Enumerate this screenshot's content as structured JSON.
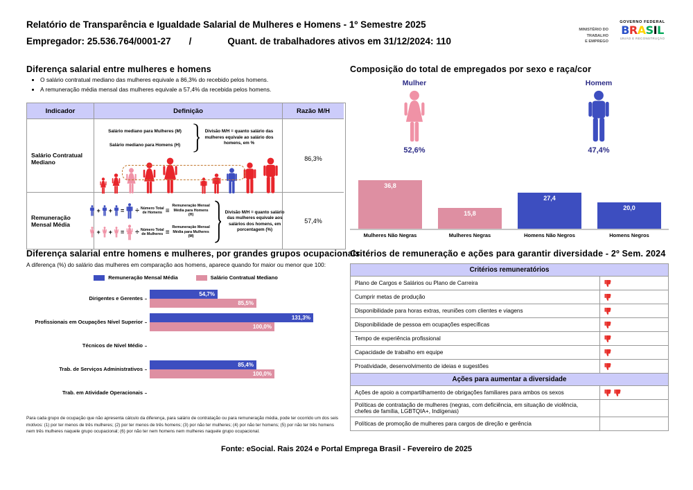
{
  "header": {
    "title": "Relatório de Transparência e Igualdade Salarial de Mulheres e Homens - 1º Semestre 2025",
    "employer": "Empregador: 25.536.764/0001-27",
    "separator": "/",
    "workers": "Quant. de trabalhadores ativos em 31/12/2024: 110",
    "ministry_lines": [
      "MINISTÉRIO DO",
      "TRABALHO",
      "E EMPREGO"
    ],
    "gov": {
      "top": "GOVERNO FEDERAL",
      "name": "BRASIL",
      "bottom": "UNIÃO E RECONSTRUÇÃO"
    }
  },
  "gap_section": {
    "title": "Diferença salarial entre mulheres e homens",
    "bullets": [
      "O salário contratual mediano das mulheres equivale a 86,3% do recebido pelos homens.",
      "A remuneração média mensal das mulheres equivale a 57,4% da recebida pelos homens."
    ],
    "table_headers": [
      "Indicador",
      "Definição",
      "Razão M/H"
    ],
    "row_median": {
      "indicator": "Salário Contratual Mediano",
      "line_women": "Salário mediano para Mulheres (M)",
      "line_men": "Salário mediano para Homens (H)",
      "note": "Divisão M/H = quanto salário das mulheres equivale ao salário dos homens, em %",
      "ratio": "86,3%"
    },
    "row_mean": {
      "indicator": "Remuneração Mensal Média",
      "men_total": "Número Total de Homens",
      "men_result": "Remuneração Mensal Média para Homens (H)",
      "women_total": "Número Total de Mulheres",
      "women_result": "Remuneração Mensal Média para Mulheres (M)",
      "note": "Divisão M/H = quanto salário das mulheres equivale aos salários dos homens, em porcentagem (%)",
      "ratio": "57,4%"
    },
    "symbols": {
      "plus": "+",
      "equals": "=",
      "divide": "÷",
      "equiv": "≡"
    }
  },
  "composition": {
    "title": "Composição do total de empregados por sexo e raça/cor",
    "female_label": "Mulher",
    "female_pct": "52,6%",
    "male_label": "Homem",
    "male_pct": "47,4%"
  },
  "occupations": {
    "title": "Diferença salarial entre homens e mulheres, por grandes grupos ocupacionais",
    "subtitle": "A diferença (%) do salário das mulheres em comparação aos homens, aparece quando for maior ou menor que 100:",
    "footnote": "Para cada grupo de ocupação que não apresenta cálculo da diferença, para salário de contratação ou para remuneração média, pode ter ocorrido um dos seis motivos: (1) por ter menos de três mulheres; (2) por ter menos de três homens; (3) por não ter mulheres; (4) por não ter homens; (5) por não ter três homens nem três mulheres naquele grupo ocupacional; (6) por não ter nem homens nem mulheres naquele grupo ocupacional."
  },
  "criteria": {
    "title": "Critérios de remuneração e ações para garantir diversidade - 2º Sem. 2024",
    "band_criteria": "Critérios remuneratórios",
    "band_actions": "Ações para aumentar a diversidade",
    "criteria_rows": [
      {
        "label": "Plano de Cargos e Salários ou Plano de Carreira",
        "icons": 1
      },
      {
        "label": "Cumprir metas de produção",
        "icons": 1
      },
      {
        "label": "Disponibilidade para horas extras, reuniões com clientes e viagens",
        "icons": 1
      },
      {
        "label": "Disponibilidade de pessoa em ocupações específicas",
        "icons": 1
      },
      {
        "label": "Tempo de experiência profissional",
        "icons": 1
      },
      {
        "label": "Capacidade de trabalho em equipe",
        "icons": 1
      },
      {
        "label": "Proatividade, desenvolvimento de ideias e sugestões",
        "icons": 1
      }
    ],
    "actions_rows": [
      {
        "label": "Ações de apoio a compartilhamento de obrigações familiares para ambos os sexos",
        "icons": 2
      },
      {
        "label": "Políticas de contratação de mulheres (negras, com deficiência, em situação de violência, chefes de família, LGBTQIA+, Indígenas)",
        "icons": 0
      },
      {
        "label": "Políticas de promoção de mulheres para cargos de direção e gerência",
        "icons": 0
      }
    ]
  },
  "chart_data": [
    {
      "type": "bar",
      "title": "Composição do total de empregados por sexo e raça/cor",
      "categories": [
        "Mulheres Não Negras",
        "Mulheres Negras",
        "Homens Não Negros",
        "Homens Negros"
      ],
      "values": [
        36.8,
        15.8,
        27.4,
        20.0
      ],
      "value_labels": [
        "36,8",
        "15,8",
        "27,4",
        "20,0"
      ],
      "bar_colors": [
        "pink",
        "pink",
        "blue",
        "blue"
      ],
      "ylim": [
        0,
        40
      ],
      "annotations": {
        "female_share": "52,6%",
        "male_share": "47,4%"
      }
    },
    {
      "type": "bar-horizontal-grouped",
      "title": "Diferença salarial entre homens e mulheres, por grandes grupos ocupacionais",
      "categories": [
        "Dirigentes e Gerentes",
        "Profissionais em Ocupações Nível Superior",
        "Técnicos de Nível Médio",
        "Trab. de Serviços Administrativos",
        "Trab. em Atividade Operacionais"
      ],
      "series": [
        {
          "name": "Remuneração Mensal Média",
          "color_key": "blue",
          "values": [
            54.7,
            131.3,
            null,
            85.4,
            null
          ],
          "labels": [
            "54,7%",
            "131,3%",
            null,
            "85,4%",
            null
          ]
        },
        {
          "name": "Salário Contratual Mediano",
          "color_key": "pink",
          "values": [
            85.5,
            100.0,
            null,
            100.0,
            null
          ],
          "labels": [
            "85,5%",
            "100,0%",
            null,
            "100,0%",
            null
          ]
        }
      ],
      "xlim": [
        0,
        145
      ],
      "legend_position": "top"
    }
  ],
  "footer": "Fonte: eSocial. Rais 2024 e Portal Emprega Brasil - Fevereiro de 2025",
  "colors": {
    "pink": "#DE8FA2",
    "pink_icon": "#F092A6",
    "blue": "#3D4EC0",
    "red": "#E8252B",
    "navy": "#2B2B86",
    "band": "#CCCCFA",
    "dash": "#C1762B",
    "icon_red": "#E8302B",
    "axis_gray": "#C4C4C4"
  }
}
